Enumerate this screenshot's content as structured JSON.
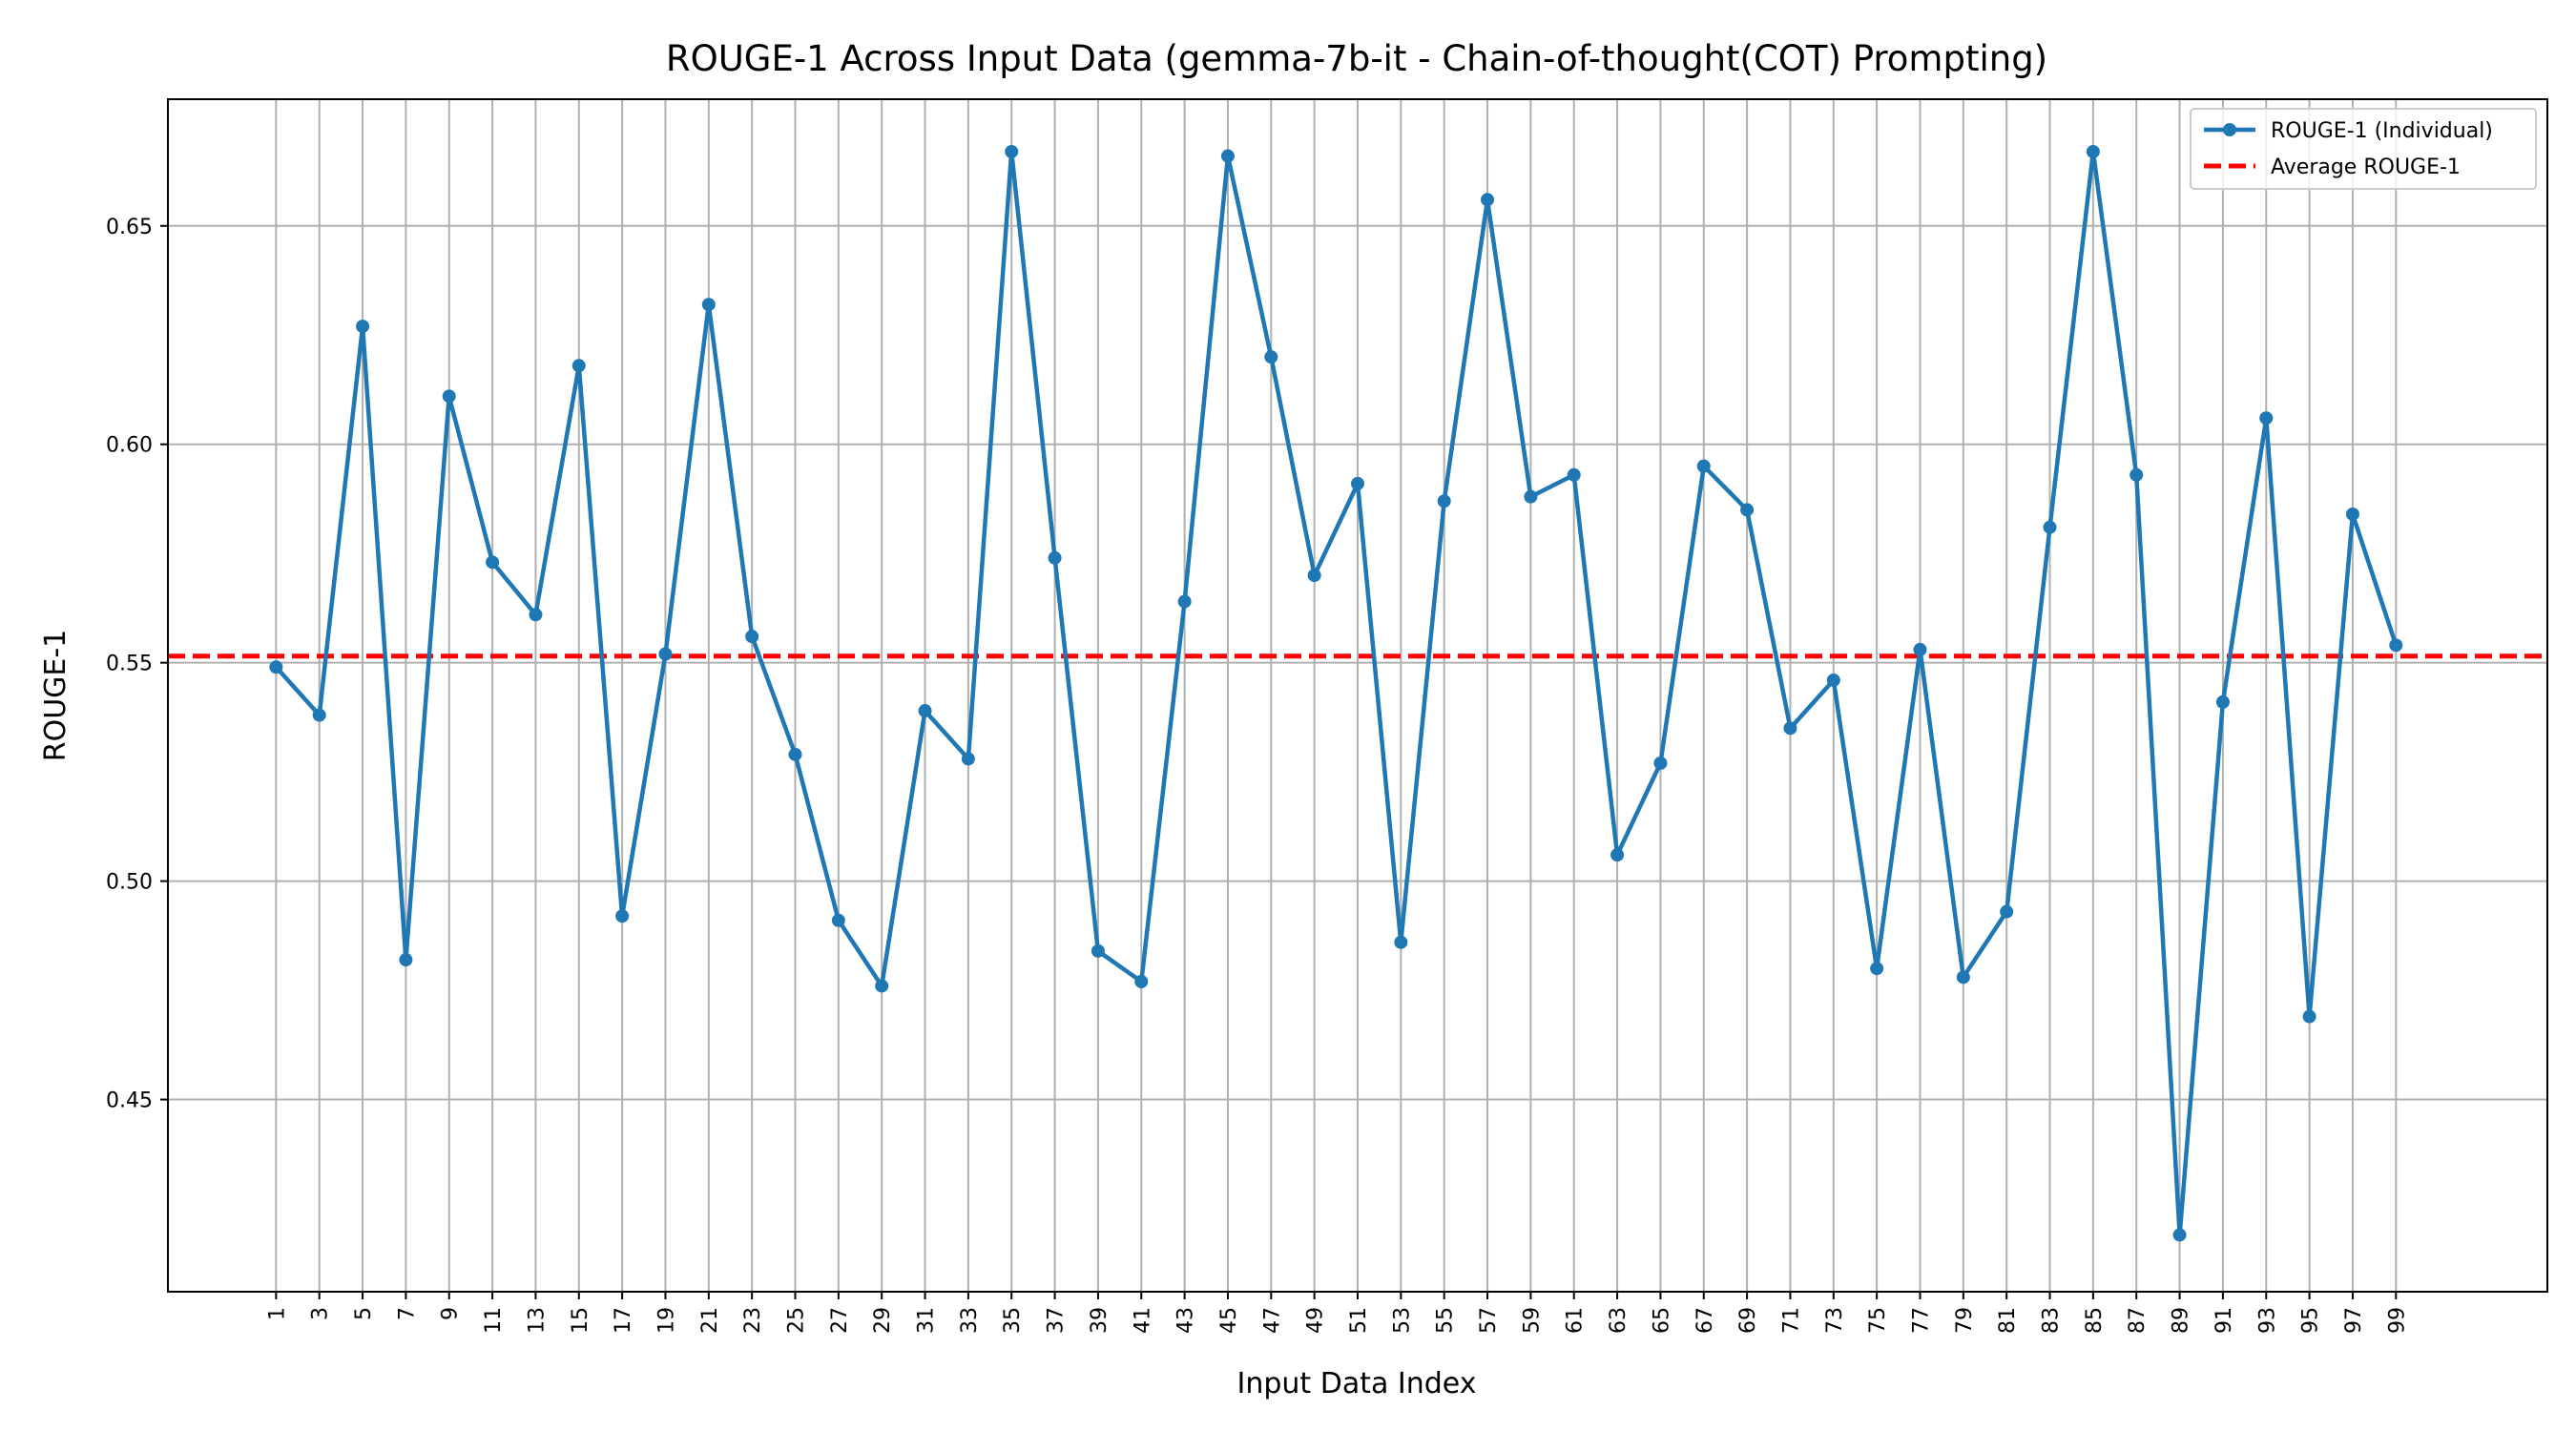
{
  "chart_data": {
    "type": "line",
    "title": "ROUGE-1 Across Input Data (gemma-7b-it - Chain-of-thought(COT) Prompting)",
    "xlabel": "Input Data Index",
    "ylabel": "ROUGE-1",
    "ylim": [
      0.406,
      0.679
    ],
    "yticks": [
      0.45,
      0.5,
      0.55,
      0.6,
      0.65
    ],
    "ytick_labels": [
      "0.45",
      "0.50",
      "0.55",
      "0.60",
      "0.65"
    ],
    "x": [
      1,
      3,
      5,
      7,
      9,
      11,
      13,
      15,
      17,
      19,
      21,
      23,
      25,
      27,
      29,
      31,
      33,
      35,
      37,
      39,
      41,
      43,
      45,
      47,
      49,
      51,
      53,
      55,
      57,
      59,
      61,
      63,
      65,
      67,
      69,
      71,
      73,
      75,
      77,
      79,
      81,
      83,
      85,
      87,
      89,
      91,
      93,
      95,
      97,
      99
    ],
    "xtick_labels": [
      "1",
      "3",
      "5",
      "7",
      "9",
      "11",
      "13",
      "15",
      "17",
      "19",
      "21",
      "23",
      "25",
      "27",
      "29",
      "31",
      "33",
      "35",
      "37",
      "39",
      "41",
      "43",
      "45",
      "47",
      "49",
      "51",
      "53",
      "55",
      "57",
      "59",
      "61",
      "63",
      "65",
      "67",
      "69",
      "71",
      "73",
      "75",
      "77",
      "79",
      "81",
      "83",
      "85",
      "87",
      "89",
      "91",
      "93",
      "95",
      "97",
      "99"
    ],
    "xlim": [
      -4,
      106
    ],
    "series": [
      {
        "name": "ROUGE-1 (Individual)",
        "color": "#1f77b4",
        "style": "solid-line-with-dot-markers",
        "values": [
          0.549,
          0.538,
          0.627,
          0.482,
          0.611,
          0.573,
          0.561,
          0.618,
          0.492,
          0.552,
          0.632,
          0.556,
          0.529,
          0.491,
          0.476,
          0.539,
          0.528,
          0.667,
          0.574,
          0.484,
          0.477,
          0.564,
          0.666,
          0.62,
          0.57,
          0.591,
          0.486,
          0.587,
          0.656,
          0.588,
          0.593,
          0.506,
          0.527,
          0.595,
          0.585,
          0.535,
          0.546,
          0.48,
          0.553,
          0.478,
          0.493,
          0.581,
          0.667,
          0.593,
          0.419,
          0.541,
          0.606,
          0.469,
          0.584,
          0.554
        ]
      },
      {
        "name": "Average ROUGE-1",
        "color": "#ff0000",
        "style": "dashed",
        "value": 0.5515
      }
    ],
    "grid": true,
    "legend_position": "top-right"
  }
}
